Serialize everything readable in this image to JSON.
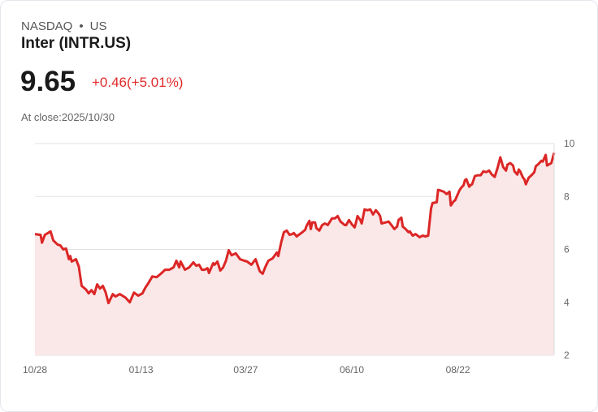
{
  "header": {
    "exchange": "NASDAQ",
    "separator": "•",
    "region": "US",
    "name": "Inter (INTR.US)",
    "price": "9.65",
    "change": "+0.46(+5.01%)",
    "close_label": "At close:2025/10/30"
  },
  "colors": {
    "line": "#dc2626",
    "fill": "#fae7e7",
    "grid": "#e2e2e2"
  },
  "chart_data": {
    "type": "area",
    "title": "Inter (INTR.US)",
    "xlabel": "",
    "ylabel": "",
    "ylim": [
      2,
      10
    ],
    "xlim": [
      0,
      367
    ],
    "y_ticks": [
      10,
      8,
      6,
      4,
      2
    ],
    "x_ticks": [
      {
        "day": 0,
        "label": "10/28"
      },
      {
        "day": 75,
        "label": "01/13"
      },
      {
        "day": 149,
        "label": "03/27"
      },
      {
        "day": 224,
        "label": "06/10"
      },
      {
        "day": 299,
        "label": "08/22"
      }
    ],
    "grid": true,
    "x": [
      0,
      4,
      5,
      7,
      11,
      13,
      16,
      18,
      20,
      22,
      24,
      25,
      26,
      29,
      31,
      33,
      36,
      38,
      40,
      42,
      44,
      46,
      48,
      50,
      52,
      55,
      57,
      60,
      64,
      67,
      70,
      73,
      76,
      78,
      80,
      83,
      86,
      89,
      92,
      95,
      98,
      100,
      102,
      103,
      106,
      109,
      112,
      114,
      116,
      118,
      120,
      122,
      123,
      126,
      127,
      129,
      131,
      133,
      135,
      137,
      139,
      142,
      145,
      148,
      150,
      153,
      156,
      159,
      161,
      163,
      165,
      168,
      171,
      172,
      174,
      176,
      178,
      180,
      182,
      183,
      185,
      189,
      191,
      192,
      194,
      195,
      196,
      198,
      199,
      201,
      203,
      205,
      207,
      210,
      212,
      214,
      216,
      219,
      220,
      222,
      224,
      226,
      227,
      228,
      230,
      231,
      233,
      235,
      237,
      239,
      241,
      243,
      244,
      245,
      248,
      250,
      252,
      254,
      256,
      257,
      259,
      260,
      262,
      264,
      265,
      267,
      269,
      272,
      274,
      276,
      278,
      280,
      281,
      284,
      285,
      287,
      289,
      291,
      293,
      294,
      296,
      297,
      300,
      301,
      303,
      304,
      305,
      307,
      308,
      309,
      311,
      313,
      315,
      317,
      319,
      320,
      321,
      323,
      325,
      327,
      329,
      331,
      333,
      334,
      336,
      338,
      339,
      341,
      342,
      343,
      345,
      346,
      347,
      349,
      351,
      353,
      354,
      356,
      358,
      359,
      361,
      362,
      364,
      365,
      367
    ],
    "y": [
      6.58,
      6.55,
      6.25,
      6.55,
      6.68,
      6.34,
      6.18,
      6.15,
      6.0,
      6.03,
      5.63,
      5.75,
      5.54,
      5.63,
      5.35,
      4.62,
      4.49,
      4.34,
      4.46,
      4.31,
      4.68,
      4.52,
      4.62,
      4.37,
      3.97,
      4.31,
      4.22,
      4.31,
      4.18,
      4.0,
      4.37,
      4.25,
      4.34,
      4.55,
      4.71,
      4.98,
      4.95,
      5.08,
      5.23,
      5.23,
      5.32,
      5.57,
      5.32,
      5.54,
      5.23,
      5.32,
      5.51,
      5.38,
      5.42,
      5.23,
      5.23,
      5.29,
      5.11,
      5.48,
      5.42,
      5.54,
      5.2,
      5.32,
      5.57,
      5.97,
      5.78,
      5.85,
      5.63,
      5.57,
      5.54,
      5.42,
      5.63,
      5.17,
      5.08,
      5.35,
      5.57,
      5.66,
      5.88,
      5.75,
      6.25,
      6.65,
      6.71,
      6.55,
      6.58,
      6.62,
      6.49,
      6.65,
      6.74,
      6.89,
      7.08,
      6.77,
      7.02,
      7.02,
      6.8,
      6.71,
      6.92,
      6.98,
      6.92,
      7.17,
      7.17,
      7.26,
      7.05,
      6.92,
      6.92,
      7.11,
      6.95,
      6.83,
      7.02,
      7.26,
      7.11,
      6.98,
      7.51,
      7.48,
      7.51,
      7.32,
      7.48,
      7.35,
      7.26,
      6.98,
      7.02,
      7.05,
      6.92,
      6.77,
      6.86,
      7.11,
      7.2,
      6.86,
      6.77,
      6.65,
      6.68,
      6.52,
      6.58,
      6.46,
      6.52,
      6.49,
      6.52,
      7.54,
      7.75,
      7.78,
      8.25,
      8.22,
      8.18,
      8.09,
      8.18,
      7.66,
      7.82,
      7.85,
      8.22,
      8.31,
      8.43,
      8.62,
      8.65,
      8.37,
      8.43,
      8.46,
      8.77,
      8.8,
      8.8,
      8.95,
      8.92,
      8.95,
      8.98,
      8.83,
      8.74,
      9.08,
      9.48,
      9.11,
      8.98,
      9.2,
      9.26,
      9.17,
      8.95,
      8.83,
      9.02,
      8.95,
      8.71,
      8.65,
      8.46,
      8.71,
      8.8,
      8.92,
      9.14,
      9.23,
      9.35,
      9.32,
      9.57,
      9.17,
      9.23,
      9.26,
      9.65
    ]
  }
}
